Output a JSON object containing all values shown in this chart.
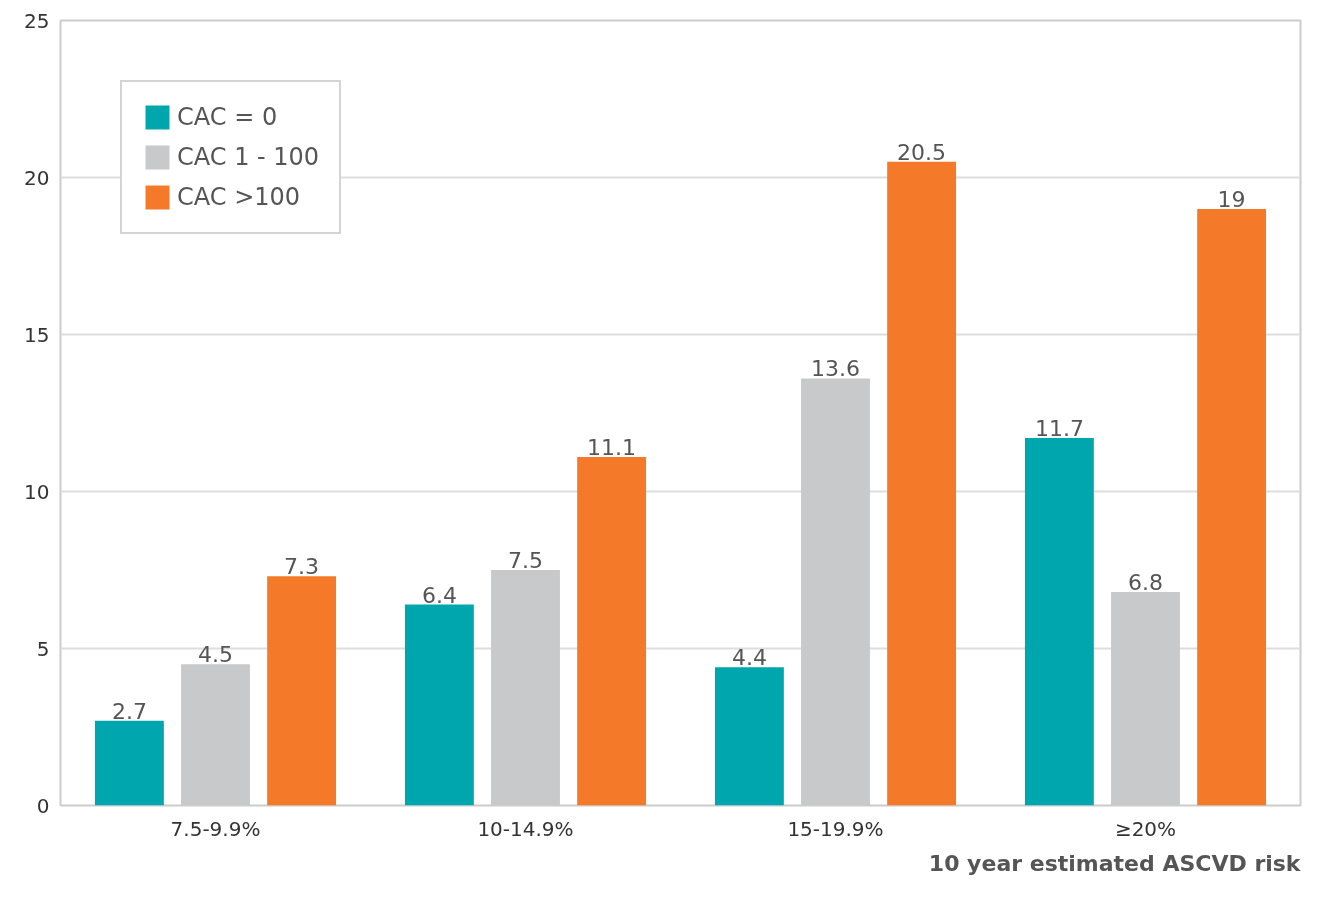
{
  "chart_data": {
    "type": "bar",
    "xlabel": "10 year estimated ASCVD risk",
    "categories": [
      "7.5-9.9%",
      "10-14.9%",
      "15-19.9%",
      "≥20%"
    ],
    "series": [
      {
        "name": "CAC = 0",
        "color": "#00a6ad",
        "values": [
          2.7,
          6.4,
          4.4,
          11.7
        ]
      },
      {
        "name": "CAC 1 - 100",
        "color": "#c8c9cb",
        "values": [
          4.5,
          7.5,
          13.6,
          6.8
        ]
      },
      {
        "name": "CAC >100",
        "color": "#f47a2a",
        "values": [
          7.3,
          11.1,
          20.5,
          19
        ]
      }
    ],
    "ylim": [
      0,
      25
    ],
    "yticks": [
      0,
      5,
      10,
      15,
      20,
      25
    ],
    "grid": "y",
    "legend": "top left",
    "data_labels": true
  }
}
